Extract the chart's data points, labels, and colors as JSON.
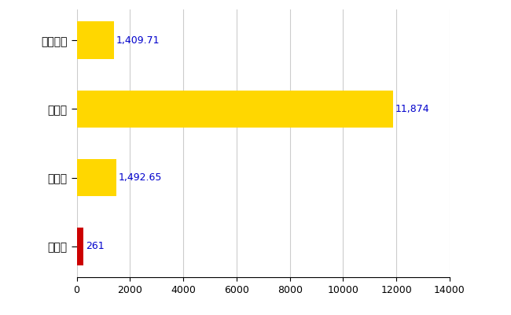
{
  "categories": [
    "白子町",
    "県平均",
    "県最大",
    "全国平均"
  ],
  "values": [
    261,
    1492.65,
    11874,
    1409.71
  ],
  "colors": [
    "#CC0000",
    "#FFD700",
    "#FFD700",
    "#FFD700"
  ],
  "labels": [
    "261",
    "1,492.65",
    "11,874",
    "1,409.71"
  ],
  "xlim": [
    0,
    14000
  ],
  "xticks": [
    0,
    2000,
    4000,
    6000,
    8000,
    10000,
    12000,
    14000
  ],
  "background_color": "#FFFFFF",
  "grid_color": "#CCCCCC",
  "label_color": "#0000CC",
  "bar_height": 0.55,
  "figsize": [
    6.5,
    4.0
  ],
  "dpi": 100
}
